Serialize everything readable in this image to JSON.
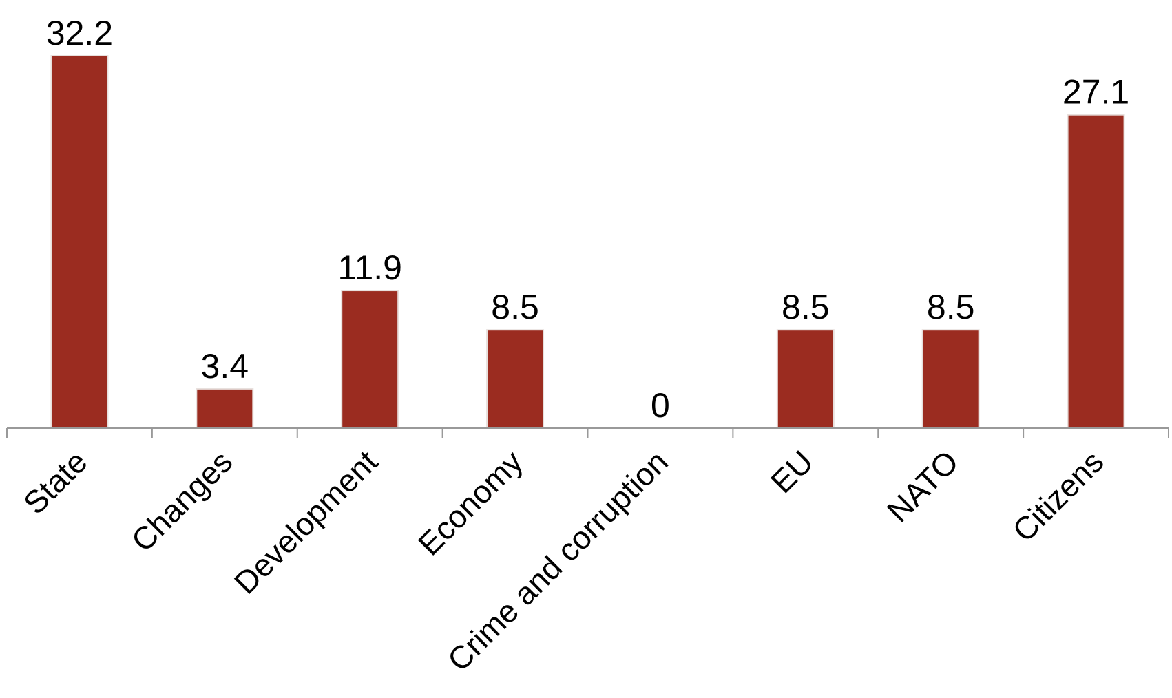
{
  "chart_data": {
    "type": "bar",
    "categories": [
      "State",
      "Changes",
      "Development",
      "Economy",
      "Crime and corruption",
      "EU",
      "NATO",
      "Citizens"
    ],
    "values": [
      32.2,
      3.4,
      11.9,
      8.5,
      0,
      8.5,
      8.5,
      27.1
    ],
    "data_labels": [
      "32.2",
      "3.4",
      "11.9",
      "8.5",
      "0",
      "8.5",
      "8.5",
      "27.1"
    ],
    "title": "",
    "xlabel": "",
    "ylabel": "",
    "ylim": [
      0,
      32.2
    ],
    "grid": false,
    "legend": "none",
    "colors": {
      "bar": "#9b2c20",
      "axis": "#999999"
    }
  }
}
